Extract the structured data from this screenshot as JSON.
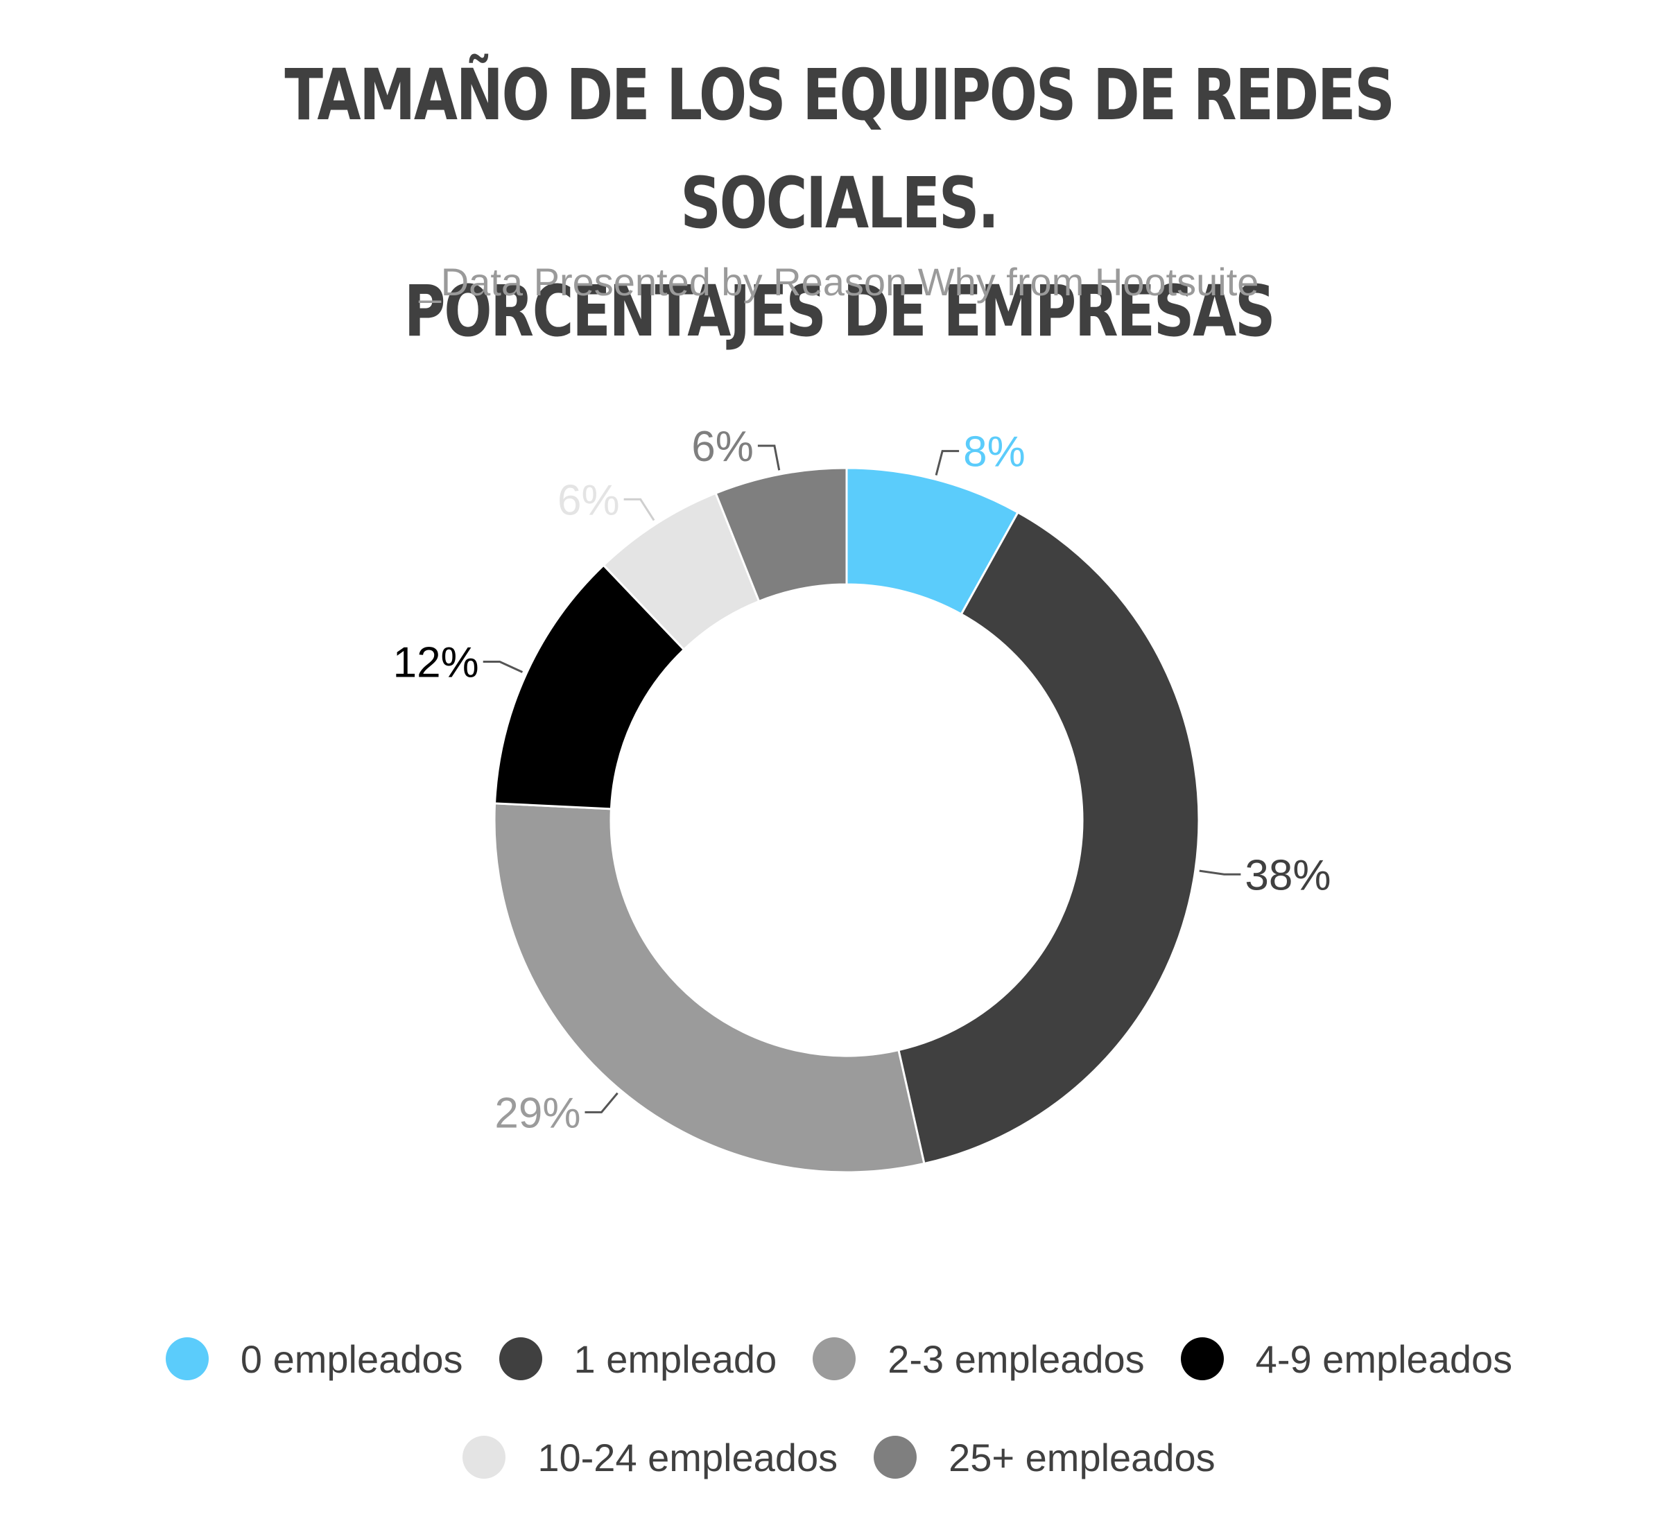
{
  "chart_data": {
    "type": "pie",
    "donut": true,
    "title_lines": [
      "TAMAÑO DE LOS EQUIPOS DE REDES SOCIALES.",
      "PORCENTAJES DE EMPRESAS"
    ],
    "subtitle": "_Data Presented by Reason Why from Hootsuite",
    "categories": [
      "0 empleados",
      "1 empleado",
      "2-3 empleados",
      "4-9 empleados",
      "10-24 empleados",
      "25+ empleados"
    ],
    "values": [
      8,
      38,
      29,
      12,
      6,
      6
    ],
    "labels": [
      "8%",
      "38%",
      "29%",
      "12%",
      "6%",
      "6%"
    ],
    "colors": [
      "#5bccfb",
      "#404040",
      "#9b9b9b",
      "#000000",
      "#e4e4e4",
      "#7f7f7f"
    ],
    "label_colors": [
      "#5bccfb",
      "#404040",
      "#9b9b9b",
      "#000000",
      "#e4e4e4",
      "#7f7f7f"
    ],
    "legend_position": "bottom"
  }
}
